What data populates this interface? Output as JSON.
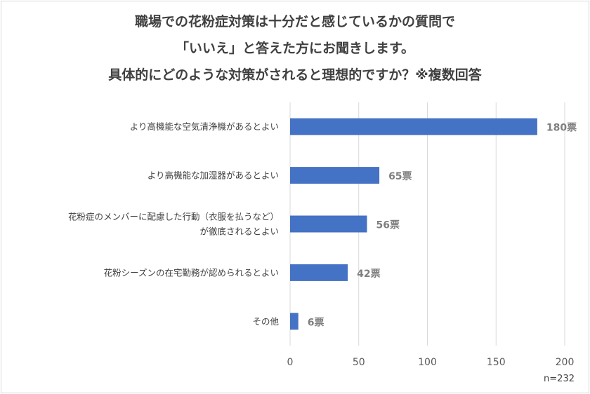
{
  "chart_data": {
    "type": "bar",
    "orientation": "horizontal",
    "title": [
      "職場での花粉症対策は十分だと感じているかの質問で",
      "「いいえ」と答えた方にお聞きします。",
      "具体的にどのような対策がされると理想的ですか？※複数回答"
    ],
    "categories": [
      [
        "より高機能な空気清浄機があるとよい"
      ],
      [
        "より高機能な加湿器があるとよい"
      ],
      [
        "花粉症のメンバーに配慮した行動（衣服を払うなど）",
        "が徹底されるとよい"
      ],
      [
        "花粉シーズンの在宅勤務が認められるとよい"
      ],
      [
        "その他"
      ]
    ],
    "values": [
      180,
      65,
      56,
      42,
      6
    ],
    "value_labels": [
      "180票",
      "65票",
      "56票",
      "42票",
      "6票"
    ],
    "xlim": [
      0,
      200
    ],
    "xticks": [
      0,
      50,
      100,
      150,
      200
    ],
    "xtick_labels": [
      "0",
      "50",
      "100",
      "150",
      "200"
    ],
    "grid": true,
    "legend": "none",
    "sample_size": "n=232",
    "colors": {
      "bar": "#4472c4",
      "grid": "#d9d9d9",
      "axis_text": "#595959"
    }
  }
}
